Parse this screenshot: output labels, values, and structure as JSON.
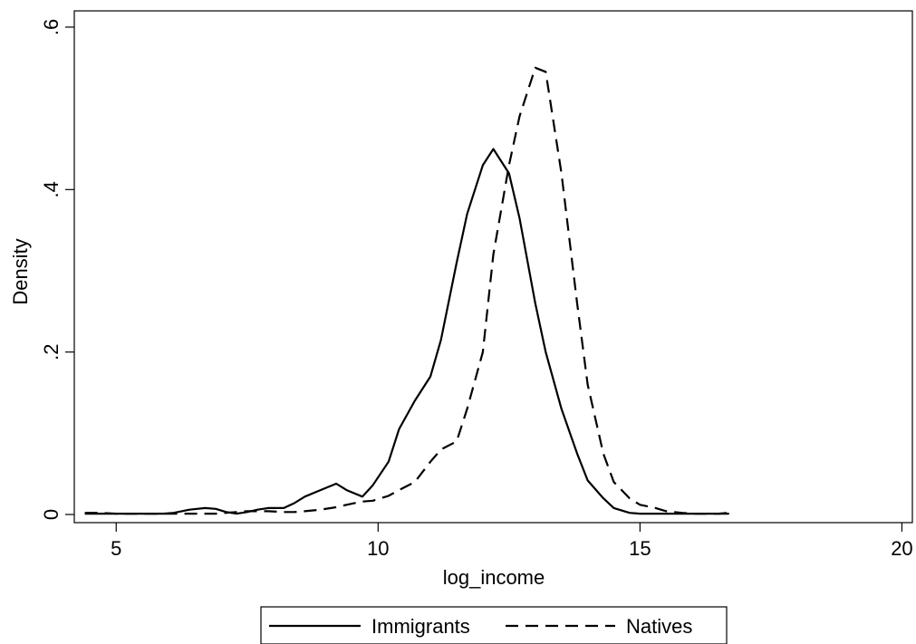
{
  "chart_data": {
    "type": "line",
    "title": "",
    "xlabel": "log_income",
    "ylabel": "Density",
    "xlim": [
      4.2,
      20.2
    ],
    "ylim": [
      -0.01,
      0.62
    ],
    "x_ticks": [
      5,
      10,
      15,
      20
    ],
    "x_tick_labels": [
      "5",
      "10",
      "15",
      "20"
    ],
    "y_ticks": [
      0,
      0.2,
      0.4,
      0.6
    ],
    "y_tick_labels": [
      "0",
      ".2",
      ".4",
      ".6"
    ],
    "grid": false,
    "legend_position": "bottom",
    "series": [
      {
        "name": "Immigrants",
        "line_style": "solid",
        "color": "#000000",
        "x": [
          4.4,
          4.7,
          5.0,
          5.3,
          5.6,
          5.9,
          6.1,
          6.4,
          6.7,
          6.9,
          7.1,
          7.3,
          7.5,
          7.7,
          7.9,
          8.2,
          8.4,
          8.6,
          8.9,
          9.2,
          9.4,
          9.7,
          9.9,
          10.2,
          10.4,
          10.7,
          11.0,
          11.2,
          11.5,
          11.7,
          12.0,
          12.2,
          12.5,
          12.7,
          13.0,
          13.2,
          13.5,
          13.8,
          14.0,
          14.3,
          14.5,
          14.8,
          15.0,
          15.3,
          15.5,
          15.8,
          16.0,
          16.3,
          16.5,
          16.7
        ],
        "y": [
          0.001,
          0.001,
          0.001,
          0.001,
          0.001,
          0.001,
          0.002,
          0.006,
          0.008,
          0.007,
          0.003,
          0.001,
          0.003,
          0.006,
          0.008,
          0.008,
          0.014,
          0.022,
          0.03,
          0.038,
          0.03,
          0.022,
          0.036,
          0.065,
          0.105,
          0.14,
          0.17,
          0.215,
          0.31,
          0.37,
          0.43,
          0.45,
          0.42,
          0.365,
          0.26,
          0.2,
          0.13,
          0.075,
          0.042,
          0.02,
          0.008,
          0.002,
          0.001,
          0.001,
          0.001,
          0.001,
          0.001,
          0.001,
          0.001,
          0.001
        ]
      },
      {
        "name": "Natives",
        "line_style": "dashed",
        "color": "#000000",
        "x": [
          4.4,
          4.7,
          5.0,
          5.3,
          5.6,
          5.9,
          6.1,
          6.4,
          6.7,
          6.9,
          7.1,
          7.3,
          7.5,
          7.7,
          7.9,
          8.2,
          8.4,
          8.6,
          8.9,
          9.2,
          9.4,
          9.7,
          9.9,
          10.2,
          10.4,
          10.7,
          11.0,
          11.2,
          11.5,
          11.7,
          12.0,
          12.2,
          12.5,
          12.7,
          13.0,
          13.2,
          13.5,
          13.8,
          14.0,
          14.3,
          14.5,
          14.8,
          15.0,
          15.3,
          15.5,
          15.8,
          16.0,
          16.3,
          16.5,
          16.7
        ],
        "y": [
          0.002,
          0.002,
          0.001,
          0.001,
          0.001,
          0.001,
          0.001,
          0.001,
          0.001,
          0.001,
          0.002,
          0.003,
          0.004,
          0.004,
          0.004,
          0.003,
          0.003,
          0.004,
          0.006,
          0.009,
          0.012,
          0.016,
          0.017,
          0.023,
          0.03,
          0.04,
          0.065,
          0.08,
          0.09,
          0.13,
          0.2,
          0.32,
          0.43,
          0.49,
          0.55,
          0.545,
          0.42,
          0.26,
          0.16,
          0.075,
          0.04,
          0.02,
          0.012,
          0.008,
          0.004,
          0.002,
          0.001,
          0.001,
          0.001,
          0.002
        ]
      }
    ]
  }
}
